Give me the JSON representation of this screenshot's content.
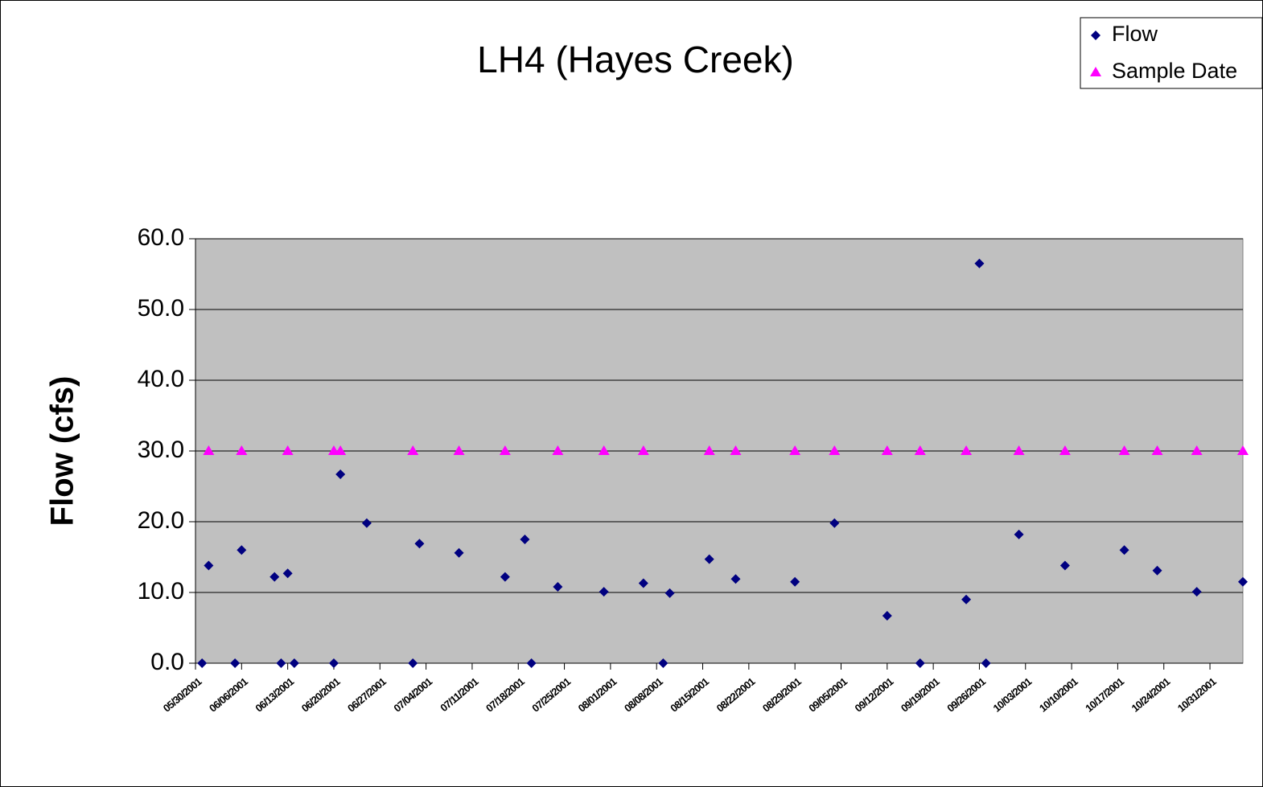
{
  "chart_data": {
    "type": "scatter",
    "title": "LH4 (Hayes Creek)",
    "y_label": "Flow (cfs)",
    "xlim": [
      "05/30/2001",
      "11/05/2001"
    ],
    "xticks": [
      "05/30/2001",
      "06/06/2001",
      "06/13/2001",
      "06/20/2001",
      "06/27/2001",
      "07/04/2001",
      "07/11/2001",
      "07/18/2001",
      "07/25/2001",
      "08/01/2001",
      "08/08/2001",
      "08/15/2001",
      "08/22/2001",
      "08/29/2001",
      "09/05/2001",
      "09/12/2001",
      "09/19/2001",
      "09/26/2001",
      "10/03/2001",
      "10/10/2001",
      "10/17/2001",
      "10/24/2001",
      "10/31/2001"
    ],
    "ylim": [
      0,
      60
    ],
    "yticks": [
      {
        "value": 0,
        "label": "0.0"
      },
      {
        "value": 10,
        "label": "10.0"
      },
      {
        "value": 20,
        "label": "20.0"
      },
      {
        "value": 30,
        "label": "30.0"
      },
      {
        "value": 40,
        "label": "40.0"
      },
      {
        "value": 50,
        "label": "50.0"
      },
      {
        "value": 60,
        "label": "60.0"
      }
    ],
    "grid": true,
    "legend": "top-right",
    "series": [
      {
        "name": "Flow",
        "color": "#000080",
        "marker": "diamond",
        "x": [
          "05/31/2001",
          "06/01/2001",
          "06/05/2001",
          "06/06/2001",
          "06/11/2001",
          "06/12/2001",
          "06/13/2001",
          "06/14/2001",
          "06/20/2001",
          "06/21/2001",
          "06/25/2001",
          "07/02/2001",
          "07/03/2001",
          "07/09/2001",
          "07/16/2001",
          "07/19/2001",
          "07/20/2001",
          "07/24/2001",
          "07/31/2001",
          "08/06/2001",
          "08/09/2001",
          "08/10/2001",
          "08/16/2001",
          "08/20/2001",
          "08/29/2001",
          "09/04/2001",
          "09/12/2001",
          "09/17/2001",
          "09/24/2001",
          "09/26/2001",
          "09/27/2001",
          "10/02/2001",
          "10/09/2001",
          "10/18/2001",
          "10/23/2001",
          "10/29/2001",
          "11/05/2001"
        ],
        "values": [
          0,
          13.8,
          0,
          16.0,
          12.2,
          0,
          12.7,
          0,
          0,
          26.7,
          19.8,
          0,
          16.9,
          15.6,
          12.2,
          17.5,
          0,
          10.8,
          10.1,
          11.3,
          0,
          9.9,
          14.7,
          11.9,
          11.5,
          19.8,
          6.7,
          0,
          9.0,
          56.5,
          0,
          18.2,
          13.8,
          16.0,
          13.1,
          10.1,
          11.5
        ]
      },
      {
        "name": "Sample Date",
        "color": "#ff00ff",
        "marker": "triangle",
        "x": [
          "06/01/2001",
          "06/06/2001",
          "06/13/2001",
          "06/20/2001",
          "06/21/2001",
          "07/02/2001",
          "07/09/2001",
          "07/16/2001",
          "07/24/2001",
          "07/31/2001",
          "08/06/2001",
          "08/16/2001",
          "08/20/2001",
          "08/29/2001",
          "09/04/2001",
          "09/12/2001",
          "09/17/2001",
          "09/24/2001",
          "10/02/2001",
          "10/09/2001",
          "10/18/2001",
          "10/23/2001",
          "10/29/2001",
          "11/05/2001"
        ],
        "values": [
          30,
          30,
          30,
          30,
          30,
          30,
          30,
          30,
          30,
          30,
          30,
          30,
          30,
          30,
          30,
          30,
          30,
          30,
          30,
          30,
          30,
          30,
          30,
          30
        ]
      }
    ]
  }
}
